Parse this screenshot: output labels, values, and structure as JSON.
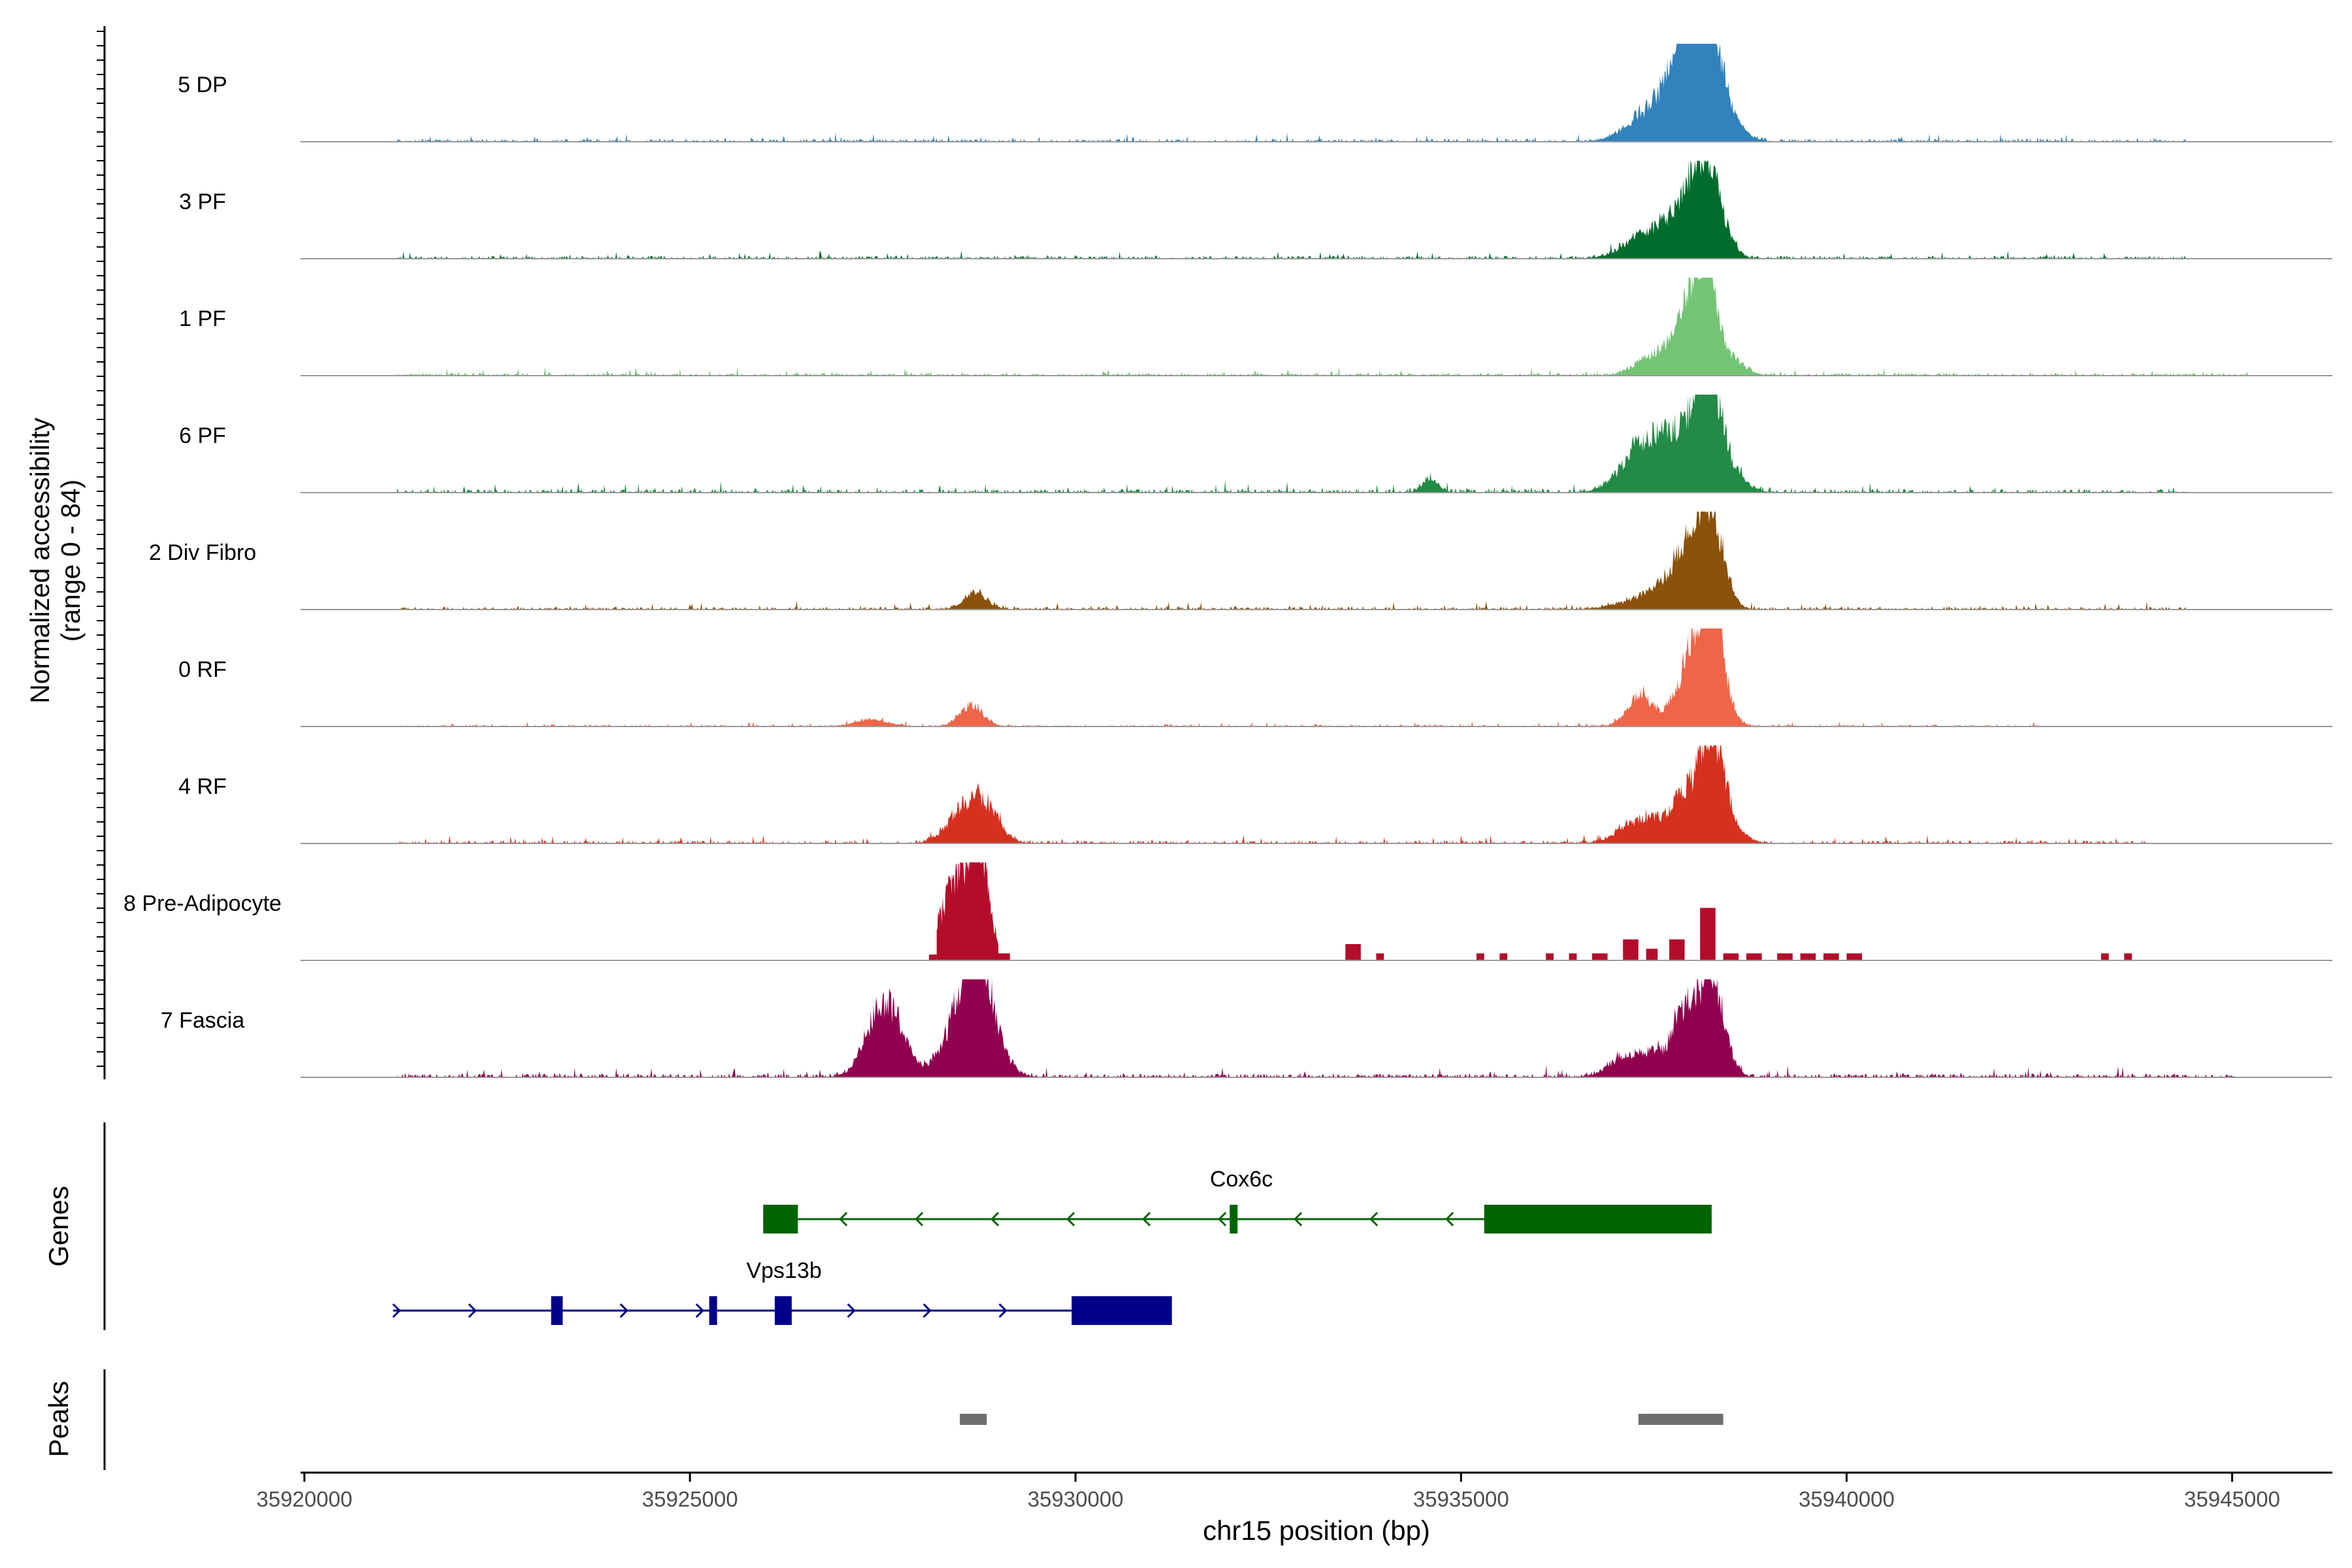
{
  "chart_data": {
    "type": "area",
    "chromosome": "chr15",
    "xlabel": "chr15 position (bp)",
    "xlim": [
      35919950,
      35946300
    ],
    "x_ticks": [
      35920000,
      35925000,
      35930000,
      35935000,
      35940000,
      35945000
    ],
    "x_tick_labels": [
      "35920000",
      "35925000",
      "35930000",
      "35935000",
      "35940000",
      "35945000"
    ],
    "ylabel_line1": "Normalized accessibility",
    "ylabel_line2": "(range 0 - 84)",
    "yrange": [
      0,
      84
    ],
    "tracks": [
      {
        "name": "5 DP",
        "color": "#3182bd",
        "peaks": [
          [
            35937350,
            20,
            250
          ],
          [
            35937600,
            12,
            150
          ],
          [
            35937800,
            30,
            200
          ],
          [
            35937950,
            78,
            120
          ],
          [
            35938050,
            30,
            200
          ],
          [
            35938200,
            60,
            150
          ],
          [
            35938250,
            40,
            250
          ]
        ],
        "background": 3,
        "extent": [
          35921200,
          35944400
        ],
        "seed": 11
      },
      {
        "name": "3 PF",
        "color": "#006d2c",
        "peaks": [
          [
            35937300,
            12,
            250
          ],
          [
            35937600,
            17,
            250
          ],
          [
            35937900,
            22,
            200
          ],
          [
            35938000,
            38,
            150
          ],
          [
            35938200,
            51,
            120
          ],
          [
            35938350,
            30,
            150
          ]
        ],
        "background": 3,
        "extent": [
          35921200,
          35944400
        ],
        "seed": 23
      },
      {
        "name": "1 PF",
        "color": "#74c476",
        "peaks": [
          [
            35937400,
            10,
            200
          ],
          [
            35937700,
            15,
            200
          ],
          [
            35937900,
            25,
            150
          ],
          [
            35938050,
            45,
            150
          ],
          [
            35938200,
            72,
            100
          ],
          [
            35938400,
            20,
            200
          ]
        ],
        "background": 3,
        "extent": [
          35921200,
          35945200
        ],
        "seed": 37
      },
      {
        "name": "6 PF",
        "color": "#238b45",
        "peaks": [
          [
            35934600,
            12,
            100
          ],
          [
            35937300,
            32,
            250
          ],
          [
            35937550,
            18,
            200
          ],
          [
            35937850,
            38,
            200
          ],
          [
            35938100,
            42,
            150
          ],
          [
            35938250,
            60,
            150
          ],
          [
            35938450,
            18,
            200
          ]
        ],
        "background": 4,
        "extent": [
          35921200,
          35944400
        ],
        "seed": 41
      },
      {
        "name": "2 Div Fibro",
        "color": "#8c510a",
        "peaks": [
          [
            35928700,
            14,
            150
          ],
          [
            35937400,
            8,
            350
          ],
          [
            35937750,
            18,
            250
          ],
          [
            35938000,
            34,
            200
          ],
          [
            35938200,
            62,
            150
          ],
          [
            35938350,
            20,
            150
          ]
        ],
        "background": 3,
        "extent": [
          35921200,
          35944400
        ],
        "seed": 53
      },
      {
        "name": "0 RF",
        "color": "#ef6548",
        "peaks": [
          [
            35927350,
            6,
            200
          ],
          [
            35928650,
            18,
            150
          ],
          [
            35937300,
            22,
            150
          ],
          [
            35937700,
            10,
            300
          ],
          [
            35937950,
            40,
            150
          ],
          [
            35938150,
            45,
            150
          ],
          [
            35938250,
            77,
            100
          ],
          [
            35938350,
            30,
            150
          ]
        ],
        "background": 2,
        "extent": [
          35921200,
          35942500
        ],
        "seed": 67
      },
      {
        "name": "4 RF",
        "color": "#d7301f",
        "peaks": [
          [
            35928500,
            20,
            200
          ],
          [
            35928800,
            32,
            200
          ],
          [
            35937300,
            16,
            250
          ],
          [
            35937700,
            10,
            300
          ],
          [
            35937950,
            32,
            200
          ],
          [
            35938250,
            70,
            150
          ],
          [
            35938400,
            20,
            200
          ]
        ],
        "background": 3,
        "extent": [
          35921200,
          35943900
        ],
        "seed": 79
      },
      {
        "name": "8 Pre-Adipocyte",
        "color": "#b30d2a",
        "peaks": [
          [
            35928400,
            42,
            200
          ],
          [
            35928650,
            50,
            200
          ],
          [
            35928750,
            72,
            100
          ],
          [
            35937150,
            10,
            150
          ],
          [
            35937550,
            15,
            150
          ],
          [
            35937800,
            18,
            150
          ],
          [
            35938200,
            45,
            150
          ]
        ],
        "background": 0,
        "extent": [
          35928100,
          35943600
        ],
        "seed": 97,
        "blocks": [
          [
            35928100,
            35928200,
            5
          ],
          [
            35928900,
            35929150,
            6
          ],
          [
            35933500,
            35933700,
            14
          ],
          [
            35933900,
            35934000,
            6
          ],
          [
            35935200,
            35935300,
            6
          ],
          [
            35935500,
            35935600,
            6
          ],
          [
            35936100,
            35936200,
            6
          ],
          [
            35936400,
            35936500,
            6
          ],
          [
            35936700,
            35936900,
            6
          ],
          [
            35937100,
            35937300,
            18
          ],
          [
            35937400,
            35937550,
            10
          ],
          [
            35937700,
            35937900,
            18
          ],
          [
            35938100,
            35938300,
            45
          ],
          [
            35938400,
            35938600,
            6
          ],
          [
            35938700,
            35938900,
            6
          ],
          [
            35939100,
            35939300,
            6
          ],
          [
            35939400,
            35939600,
            6
          ],
          [
            35939700,
            35939900,
            6
          ],
          [
            35940000,
            35940200,
            6
          ],
          [
            35943300,
            35943400,
            6
          ],
          [
            35943600,
            35943700,
            6
          ]
        ]
      },
      {
        "name": "7 Fascia",
        "color": "#91004f",
        "peaks": [
          [
            35927450,
            45,
            200
          ],
          [
            35927650,
            28,
            200
          ],
          [
            35928450,
            42,
            200
          ],
          [
            35928700,
            72,
            150
          ],
          [
            35928850,
            45,
            200
          ],
          [
            35937100,
            15,
            200
          ],
          [
            35937500,
            18,
            200
          ],
          [
            35937900,
            50,
            150
          ],
          [
            35938200,
            64,
            150
          ],
          [
            35938350,
            25,
            150
          ]
        ],
        "background": 4,
        "extent": [
          35921200,
          35945050
        ],
        "seed": 113
      }
    ],
    "genes_label": "Genes",
    "genes": [
      {
        "name": "Cox6c",
        "strand": "-",
        "color": "#006400",
        "start": 35925950,
        "end": 35938250,
        "exons": [
          [
            35925950,
            35926400
          ],
          [
            35932000,
            35932100
          ],
          [
            35935300,
            35938250
          ]
        ]
      },
      {
        "name": "Vps13b",
        "strand": "+",
        "color": "#00008b",
        "start": 35921150,
        "end": 35931250,
        "exons": [
          [
            35923200,
            35923350
          ],
          [
            35925250,
            35925350
          ],
          [
            35926100,
            35926320
          ],
          [
            35929950,
            35931250
          ]
        ]
      }
    ],
    "peaks_label": "Peaks",
    "peak_regions": [
      [
        35928500,
        35928850
      ],
      [
        35937300,
        35938400
      ]
    ],
    "peak_color": "#6e6e6e"
  }
}
